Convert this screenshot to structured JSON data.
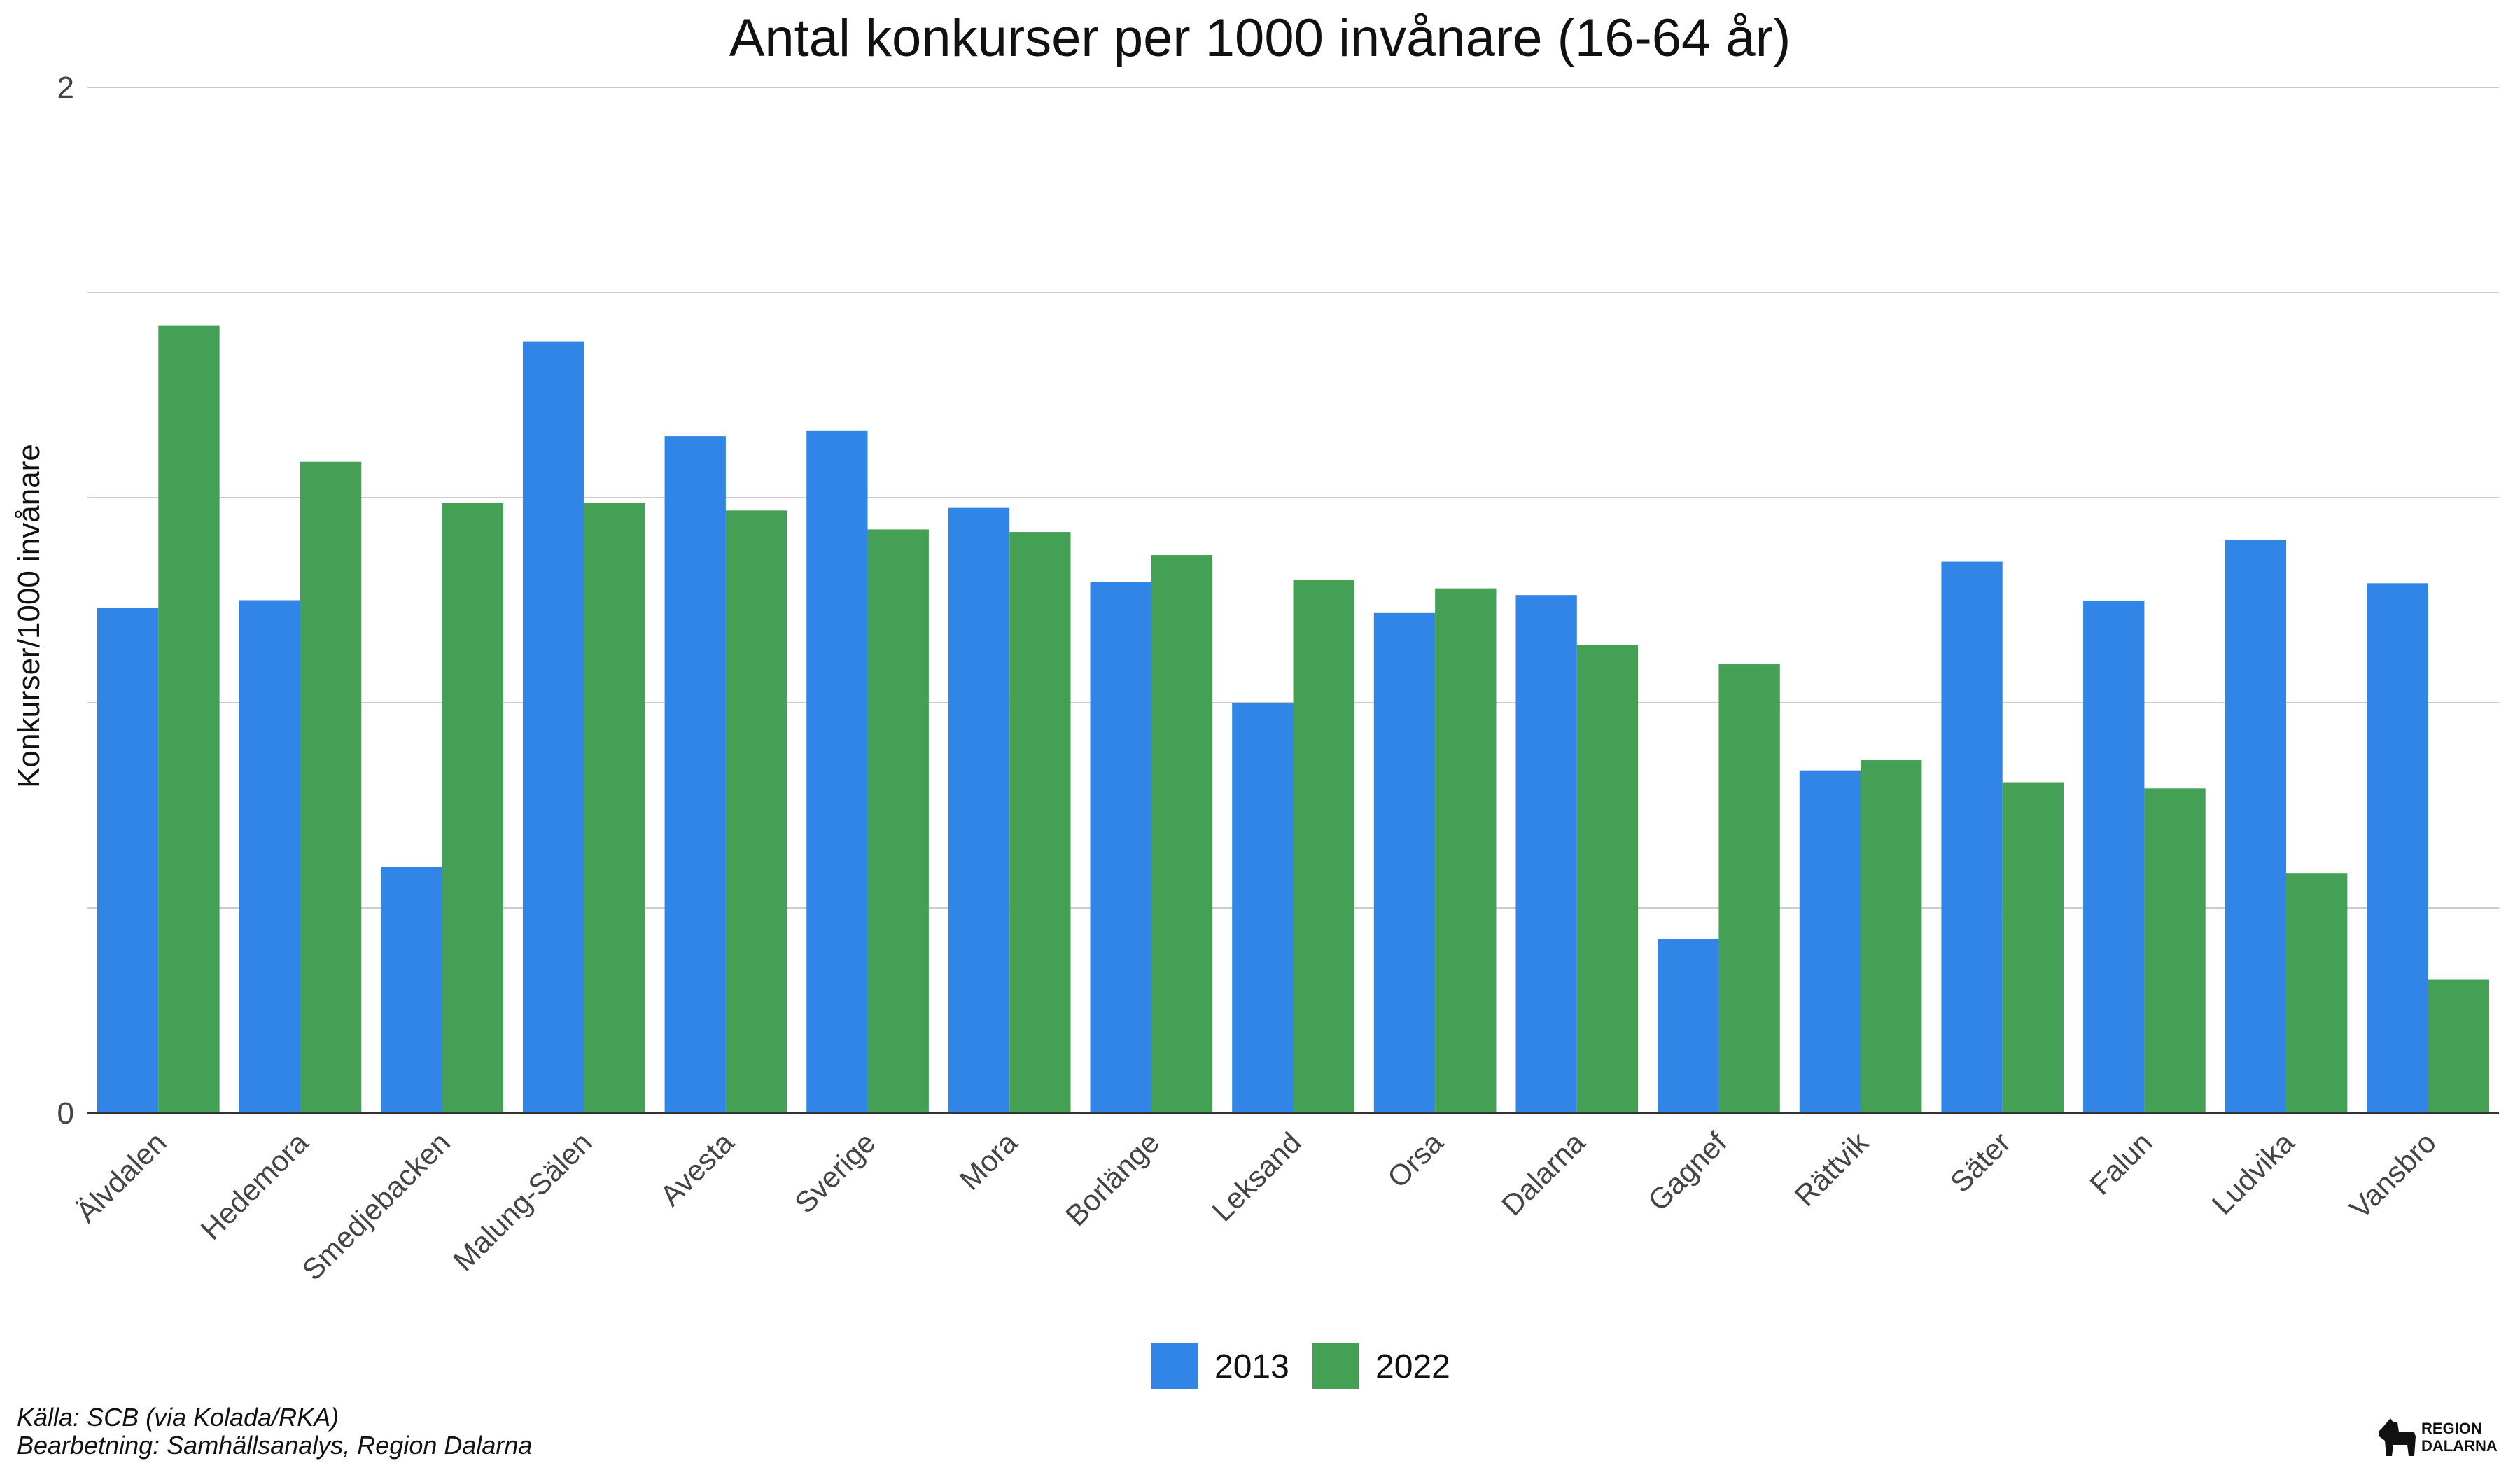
{
  "chart_data": {
    "type": "bar",
    "title": "Antal konkurser per 1000 invånare (16-64 år)",
    "ylabel": "Konkurser/1000 invånare",
    "xlabel": "",
    "ylim": [
      0,
      2
    ],
    "yticks": [
      0,
      0.4,
      0.8,
      1.2,
      1.6,
      2
    ],
    "yticklabels": [
      "0",
      "",
      "",
      "",
      "",
      "2"
    ],
    "grid": true,
    "legend_position": "bottom",
    "categories": [
      "Älvdalen",
      "Hedemora",
      "Smedjebacken",
      "Malung-Sälen",
      "Avesta",
      "Sverige",
      "Mora",
      "Borlänge",
      "Leksand",
      "Orsa",
      "Dalarna",
      "Gagnef",
      "Rättvik",
      "Säter",
      "Falun",
      "Ludvika",
      "Vansbro"
    ],
    "series": [
      {
        "name": "2013",
        "color": "#3085e6",
        "values": [
          0.985,
          1.0,
          0.48,
          1.505,
          1.32,
          1.33,
          1.18,
          1.035,
          0.8,
          0.975,
          1.01,
          0.34,
          0.668,
          1.075,
          0.998,
          1.118,
          1.033
        ]
      },
      {
        "name": "2022",
        "color": "#43a054",
        "values": [
          1.535,
          1.27,
          1.19,
          1.19,
          1.175,
          1.138,
          1.133,
          1.088,
          1.04,
          1.023,
          0.913,
          0.875,
          0.688,
          0.645,
          0.633,
          0.468,
          0.26
        ]
      }
    ]
  },
  "footer": {
    "source_line1": "Källa: SCB (via Kolada/RKA)",
    "source_line2": "Bearbetning: Samhällsanalys, Region Dalarna",
    "logo_line1": "REGION",
    "logo_line2": "DALARNA"
  }
}
